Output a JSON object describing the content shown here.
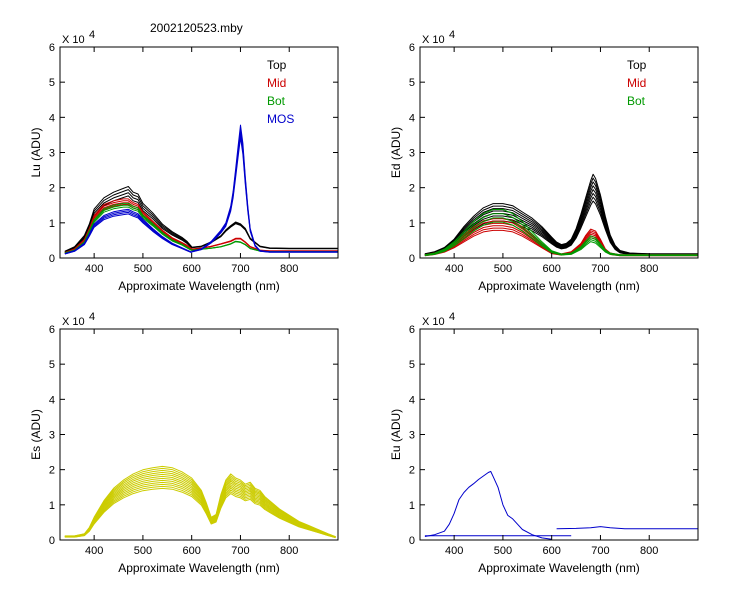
{
  "figure": {
    "title": "2002120523.mby"
  },
  "chart_data": [
    {
      "type": "line",
      "id": "lu",
      "title": "",
      "xlabel": "Approximate Wavelength (nm)",
      "ylabel": "Lu (ADU)",
      "xlim": [
        330,
        900
      ],
      "ylim": [
        0,
        6
      ],
      "y_multiplier": "X 10",
      "y_multiplier_exp": "4",
      "xticks": [
        400,
        500,
        600,
        700,
        800
      ],
      "yticks": [
        0,
        1,
        2,
        3,
        4,
        5,
        6
      ],
      "legend_position": "top-right",
      "legend": [
        {
          "label": "Top",
          "color": "#000000"
        },
        {
          "label": "Mid",
          "color": "#cc0000"
        },
        {
          "label": "Bot",
          "color": "#009900"
        },
        {
          "label": "MOS",
          "color": "#0000cc"
        }
      ],
      "series": [
        {
          "name": "Top",
          "color": "#000000",
          "count": 4,
          "spread": 0.14,
          "x": [
            340,
            360,
            380,
            390,
            400,
            420,
            440,
            460,
            470,
            480,
            490,
            500,
            520,
            540,
            560,
            580,
            590,
            600
          ],
          "y": [
            0.18,
            0.3,
            0.6,
            0.9,
            1.3,
            1.6,
            1.75,
            1.85,
            1.9,
            1.75,
            1.7,
            1.45,
            1.2,
            0.9,
            0.7,
            0.55,
            0.45,
            0.3
          ]
        },
        {
          "name": "Top",
          "color": "#000000",
          "count": 3,
          "spread": 0.05,
          "x": [
            600,
            620,
            640,
            660,
            670,
            680,
            690,
            700,
            710,
            720,
            740,
            760,
            800,
            850,
            900
          ],
          "y": [
            0.3,
            0.33,
            0.45,
            0.62,
            0.78,
            0.9,
            1.0,
            0.95,
            0.82,
            0.55,
            0.33,
            0.28,
            0.27,
            0.27,
            0.27
          ]
        },
        {
          "name": "Mid",
          "color": "#cc0000",
          "count": 4,
          "spread": 0.1,
          "x": [
            340,
            360,
            380,
            390,
            400,
            420,
            440,
            460,
            470,
            480,
            490,
            500,
            520,
            540,
            560,
            580,
            590,
            600
          ],
          "y": [
            0.15,
            0.25,
            0.5,
            0.8,
            1.15,
            1.45,
            1.55,
            1.6,
            1.6,
            1.5,
            1.45,
            1.25,
            1.0,
            0.75,
            0.55,
            0.42,
            0.35,
            0.25
          ]
        },
        {
          "name": "Mid",
          "color": "#cc0000",
          "count": 3,
          "spread": 0.04,
          "x": [
            600,
            620,
            640,
            660,
            680,
            690,
            700,
            710,
            720,
            740,
            760,
            800,
            900
          ],
          "y": [
            0.25,
            0.28,
            0.33,
            0.4,
            0.48,
            0.55,
            0.55,
            0.45,
            0.32,
            0.22,
            0.2,
            0.2,
            0.2
          ]
        },
        {
          "name": "Bot",
          "color": "#009900",
          "count": 3,
          "spread": 0.07,
          "x": [
            340,
            360,
            380,
            390,
            400,
            420,
            440,
            460,
            470,
            480,
            490,
            500,
            520,
            540,
            560,
            580,
            590,
            600
          ],
          "y": [
            0.14,
            0.22,
            0.45,
            0.75,
            1.05,
            1.35,
            1.45,
            1.5,
            1.5,
            1.42,
            1.38,
            1.18,
            0.95,
            0.7,
            0.5,
            0.38,
            0.3,
            0.22
          ]
        },
        {
          "name": "Bot",
          "color": "#009900",
          "count": 3,
          "spread": 0.03,
          "x": [
            600,
            620,
            640,
            660,
            680,
            690,
            700,
            710,
            720,
            740,
            760,
            800,
            900
          ],
          "y": [
            0.22,
            0.25,
            0.28,
            0.32,
            0.4,
            0.47,
            0.45,
            0.38,
            0.27,
            0.2,
            0.18,
            0.18,
            0.18
          ]
        },
        {
          "name": "MOS",
          "color": "#0000cc",
          "count": 4,
          "spread": 0.1,
          "x": [
            340,
            360,
            380,
            390,
            400,
            420,
            440,
            460,
            470,
            480,
            490,
            500,
            520,
            540,
            560,
            580,
            590,
            600
          ],
          "y": [
            0.12,
            0.2,
            0.4,
            0.65,
            0.92,
            1.15,
            1.25,
            1.3,
            1.32,
            1.25,
            1.2,
            1.05,
            0.8,
            0.58,
            0.4,
            0.28,
            0.22,
            0.16
          ]
        },
        {
          "name": "MOS",
          "color": "#0000cc",
          "count": 4,
          "spread": 0.1,
          "x": [
            600,
            620,
            640,
            650,
            660,
            670,
            680,
            685,
            690,
            695,
            700,
            705,
            710,
            715,
            720,
            730,
            740,
            760,
            800,
            850,
            900
          ],
          "y": [
            0.18,
            0.25,
            0.45,
            0.6,
            0.75,
            0.95,
            1.4,
            1.8,
            2.4,
            3.0,
            3.6,
            3.1,
            2.2,
            1.4,
            0.8,
            0.35,
            0.2,
            0.17,
            0.17,
            0.17,
            0.17
          ]
        }
      ]
    },
    {
      "type": "line",
      "id": "ed",
      "title": "",
      "xlabel": "Approximate Wavelength (nm)",
      "ylabel": "Ed  (ADU)",
      "xlim": [
        330,
        900
      ],
      "ylim": [
        0,
        6
      ],
      "y_multiplier": "X 10",
      "y_multiplier_exp": "4",
      "xticks": [
        400,
        500,
        600,
        700,
        800
      ],
      "yticks": [
        0,
        1,
        2,
        3,
        4,
        5,
        6
      ],
      "legend_position": "top-right",
      "legend": [
        {
          "label": "Top",
          "color": "#000000"
        },
        {
          "label": "Mid",
          "color": "#cc0000"
        },
        {
          "label": "Bot",
          "color": "#009900"
        }
      ],
      "series": [
        {
          "name": "Top",
          "color": "#000000",
          "count": 8,
          "spread": 0.38,
          "x": [
            340,
            360,
            380,
            400,
            420,
            440,
            460,
            480,
            500,
            520,
            540,
            560,
            580,
            600,
            610,
            620,
            630,
            640,
            650,
            660,
            670,
            680,
            685,
            690,
            700,
            710,
            720,
            730,
            740,
            760,
            800,
            850,
            900
          ],
          "y": [
            0.1,
            0.15,
            0.25,
            0.45,
            0.75,
            1.0,
            1.2,
            1.3,
            1.3,
            1.25,
            1.1,
            0.95,
            0.75,
            0.5,
            0.38,
            0.32,
            0.35,
            0.45,
            0.7,
            1.05,
            1.45,
            1.85,
            2.0,
            1.9,
            1.5,
            1.0,
            0.55,
            0.3,
            0.18,
            0.12,
            0.1,
            0.1,
            0.1
          ]
        },
        {
          "name": "Mid",
          "color": "#cc0000",
          "count": 6,
          "spread": 0.35,
          "x": [
            340,
            360,
            380,
            400,
            420,
            440,
            460,
            480,
            500,
            520,
            540,
            560,
            580,
            600,
            620,
            640,
            660,
            670,
            680,
            690,
            700,
            710,
            720,
            740,
            760,
            800,
            900
          ],
          "y": [
            0.08,
            0.12,
            0.2,
            0.35,
            0.55,
            0.75,
            0.9,
            0.95,
            0.95,
            0.9,
            0.75,
            0.55,
            0.35,
            0.15,
            0.1,
            0.15,
            0.35,
            0.55,
            0.7,
            0.65,
            0.45,
            0.22,
            0.12,
            0.08,
            0.08,
            0.08,
            0.08
          ]
        },
        {
          "name": "Bot",
          "color": "#009900",
          "count": 4,
          "spread": 0.3,
          "x": [
            340,
            360,
            380,
            400,
            420,
            440,
            460,
            480,
            500,
            520,
            540,
            560,
            580,
            600,
            620,
            640,
            660,
            670,
            680,
            690,
            700,
            710,
            720,
            740,
            760,
            800,
            900
          ],
          "y": [
            0.08,
            0.12,
            0.22,
            0.4,
            0.65,
            0.9,
            1.1,
            1.2,
            1.2,
            1.1,
            0.9,
            0.65,
            0.4,
            0.18,
            0.1,
            0.12,
            0.28,
            0.42,
            0.55,
            0.5,
            0.35,
            0.2,
            0.12,
            0.08,
            0.08,
            0.08,
            0.08
          ]
        }
      ]
    },
    {
      "type": "line",
      "id": "es",
      "title": "",
      "xlabel": "Approximate Wavelength (nm)",
      "ylabel": "Es  (ADU)",
      "xlim": [
        330,
        900
      ],
      "ylim": [
        0,
        6
      ],
      "y_multiplier": "X 10",
      "y_multiplier_exp": "4",
      "xticks": [
        400,
        500,
        600,
        700,
        800
      ],
      "yticks": [
        0,
        1,
        2,
        3,
        4,
        5,
        6
      ],
      "legend": [],
      "series": [
        {
          "name": "Es",
          "color": "#cccc00",
          "count": 12,
          "spread": 0.35,
          "x": [
            340,
            360,
            380,
            390,
            400,
            420,
            440,
            460,
            480,
            500,
            520,
            540,
            560,
            580,
            600,
            620,
            630,
            640,
            650,
            660,
            670,
            680,
            690,
            700,
            710,
            720,
            730,
            740,
            750,
            760,
            780,
            800,
            820,
            840,
            860,
            880,
            895
          ],
          "y": [
            0.1,
            0.1,
            0.15,
            0.3,
            0.55,
            0.95,
            1.25,
            1.45,
            1.6,
            1.7,
            1.75,
            1.78,
            1.75,
            1.65,
            1.5,
            1.2,
            0.9,
            0.55,
            0.62,
            1.1,
            1.45,
            1.6,
            1.5,
            1.45,
            1.35,
            1.4,
            1.25,
            1.2,
            1.05,
            0.95,
            0.75,
            0.6,
            0.45,
            0.35,
            0.25,
            0.15,
            0.08
          ]
        }
      ]
    },
    {
      "type": "line",
      "id": "eu",
      "title": "",
      "xlabel": "Approximate Wavelength (nm)",
      "ylabel": "Eu  (ADU)",
      "xlim": [
        330,
        900
      ],
      "ylim": [
        0,
        6
      ],
      "y_multiplier": "X 10",
      "y_multiplier_exp": "4",
      "xticks": [
        400,
        500,
        600,
        700,
        800
      ],
      "yticks": [
        0,
        1,
        2,
        3,
        4,
        5,
        6
      ],
      "legend": [],
      "series": [
        {
          "name": "Eu",
          "color": "#0000cc",
          "count": 1,
          "spread": 0,
          "x": [
            340,
            360,
            380,
            390,
            400,
            410,
            420,
            430,
            440,
            450,
            460,
            470,
            475,
            480,
            490,
            500,
            510,
            520,
            530,
            540,
            560,
            580,
            600
          ],
          "y": [
            0.1,
            0.15,
            0.25,
            0.45,
            0.75,
            1.15,
            1.35,
            1.5,
            1.6,
            1.72,
            1.82,
            1.92,
            1.95,
            1.8,
            1.5,
            1.0,
            0.7,
            0.6,
            0.45,
            0.3,
            0.15,
            0.06,
            0.02
          ]
        },
        {
          "name": "Eu",
          "color": "#0000cc",
          "count": 1,
          "spread": 0,
          "x": [
            340,
            640
          ],
          "y": [
            0.12,
            0.12
          ]
        },
        {
          "name": "Eu",
          "color": "#0000cc",
          "count": 1,
          "spread": 0,
          "x": [
            610,
            650,
            680,
            700,
            720,
            750,
            800,
            850,
            900
          ],
          "y": [
            0.32,
            0.33,
            0.35,
            0.38,
            0.35,
            0.32,
            0.32,
            0.32,
            0.32
          ]
        }
      ]
    }
  ]
}
